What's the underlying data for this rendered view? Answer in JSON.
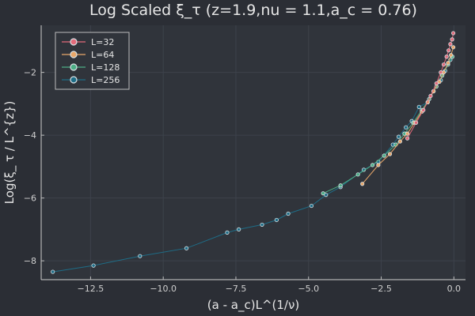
{
  "chart_data": {
    "type": "line",
    "title": "Log Scaled ξ_τ (z=1.9,nu = 1.1,a_c = 0.76)",
    "xlabel": "(a - a_c)L^(1/ν)",
    "ylabel": "Log(ξ_ τ / L^{z})",
    "xlim": [
      -14.2,
      0.4
    ],
    "ylim": [
      -8.6,
      -0.5
    ],
    "xticks": [
      -12.5,
      -10.0,
      -7.5,
      -5.0,
      -2.5,
      0.0
    ],
    "xtick_labels": [
      "−12.5",
      "−10.0",
      "−7.5",
      "−5.0",
      "−2.5",
      "0.0"
    ],
    "yticks": [
      -8,
      -6,
      -4,
      -2
    ],
    "ytick_labels": [
      "−8",
      "−6",
      "−4",
      "−2"
    ],
    "grid": true,
    "legend_position": "top-left",
    "series": [
      {
        "name": "L=32",
        "color": "#e26a7a",
        "x": [
          -1.6,
          -1.3,
          -1.05,
          -0.8,
          -0.6,
          -0.45,
          -0.35,
          -0.25,
          -0.18,
          -0.12,
          -0.06,
          -0.02
        ],
        "y": [
          -4.1,
          -3.6,
          -3.2,
          -2.75,
          -2.35,
          -2.0,
          -1.75,
          -1.5,
          -1.3,
          -1.1,
          -0.95,
          -0.75
        ]
      },
      {
        "name": "L=64",
        "color": "#e8a76a",
        "x": [
          -3.15,
          -2.6,
          -2.2,
          -1.85,
          -1.6,
          -1.35,
          -1.1,
          -0.9,
          -0.7,
          -0.5,
          -0.35,
          -0.2,
          -0.1,
          -0.02
        ],
        "y": [
          -5.55,
          -4.95,
          -4.6,
          -4.2,
          -3.95,
          -3.6,
          -3.25,
          -2.95,
          -2.6,
          -2.3,
          -2.0,
          -1.7,
          -1.45,
          -1.2
        ]
      },
      {
        "name": "L=128",
        "color": "#4cae86",
        "x": [
          -4.5,
          -3.9,
          -3.3,
          -2.8,
          -2.4,
          -2.0,
          -1.7,
          -1.4,
          -1.1,
          -0.85,
          -0.6,
          -0.4,
          -0.2,
          -0.05
        ],
        "y": [
          -5.85,
          -5.6,
          -5.25,
          -4.95,
          -4.65,
          -4.3,
          -3.95,
          -3.6,
          -3.2,
          -2.85,
          -2.45,
          -2.1,
          -1.75,
          -1.5
        ]
      },
      {
        "name": "L=256",
        "color": "#1e6d87",
        "x": [
          -13.8,
          -12.4,
          -10.8,
          -9.2,
          -7.8,
          -7.4,
          -6.6,
          -6.1,
          -5.7,
          -4.9,
          -4.4,
          -3.9,
          -3.1,
          -2.6,
          -2.1,
          -1.9,
          -1.65,
          -1.45,
          -1.2,
          -0.9,
          -0.7,
          -0.45,
          -0.3,
          -0.12
        ],
        "y": [
          -8.35,
          -8.15,
          -7.85,
          -7.6,
          -7.1,
          -7.0,
          -6.85,
          -6.7,
          -6.5,
          -6.25,
          -5.9,
          -5.65,
          -5.1,
          -4.85,
          -4.3,
          -4.05,
          -3.75,
          -3.55,
          -3.1,
          -2.95,
          -2.6,
          -2.25,
          -1.95,
          -1.6
        ]
      }
    ]
  }
}
